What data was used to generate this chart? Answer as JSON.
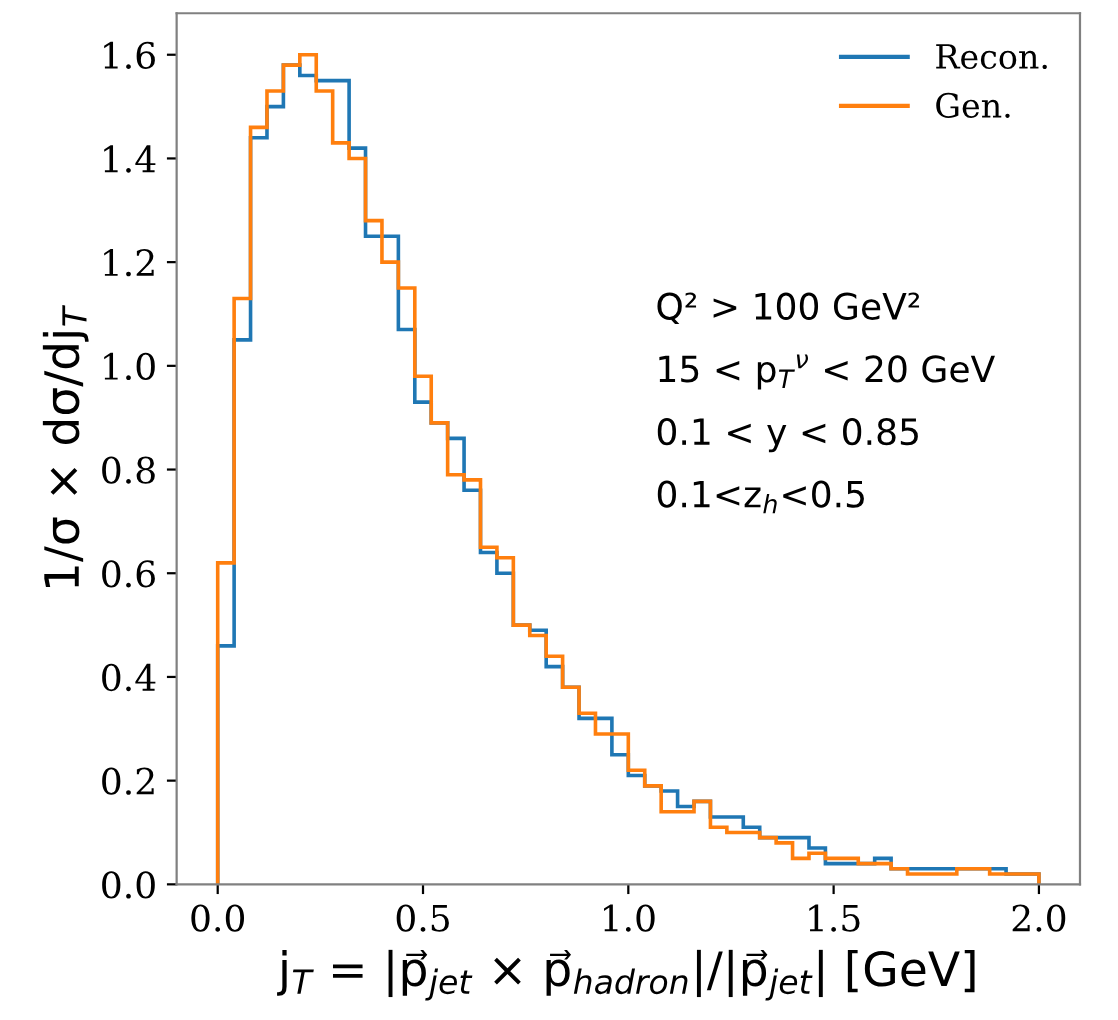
{
  "chart_data": {
    "type": "histogram",
    "xlabel": "j$_{T}$ = |p⃗$_{jet}$ × p⃗$_{hadron}$|/|p⃗$_{jet}$| [GeV]",
    "ylabel": "1/σ × dσ/dj$_{T}$",
    "bins": [
      0.0,
      0.04,
      0.08,
      0.12,
      0.16,
      0.2,
      0.24,
      0.28,
      0.32,
      0.36,
      0.4,
      0.44,
      0.48,
      0.52,
      0.56,
      0.6,
      0.64,
      0.68,
      0.72,
      0.76,
      0.8,
      0.84,
      0.88,
      0.92,
      0.96,
      1.0,
      1.04,
      1.08,
      1.12,
      1.16,
      1.2,
      1.24,
      1.28,
      1.32,
      1.36,
      1.4,
      1.44,
      1.48,
      1.52,
      1.56,
      1.6,
      1.64,
      1.68,
      1.72,
      1.76,
      1.8,
      1.84,
      1.88,
      1.92,
      1.96,
      2.0
    ],
    "series": [
      {
        "name": "Recon.",
        "color": "#1f77b4",
        "values": [
          0.46,
          1.05,
          1.44,
          1.5,
          1.58,
          1.56,
          1.55,
          1.55,
          1.42,
          1.25,
          1.25,
          1.07,
          0.93,
          0.89,
          0.86,
          0.76,
          0.64,
          0.6,
          0.5,
          0.49,
          0.42,
          0.38,
          0.32,
          0.32,
          0.25,
          0.21,
          0.19,
          0.18,
          0.15,
          0.16,
          0.13,
          0.13,
          0.11,
          0.09,
          0.09,
          0.09,
          0.07,
          0.04,
          0.04,
          0.04,
          0.05,
          0.03,
          0.03,
          0.03,
          0.03,
          0.03,
          0.03,
          0.03,
          0.02,
          0.02
        ]
      },
      {
        "name": "Gen.",
        "color": "#ff7f0e",
        "values": [
          0.62,
          1.13,
          1.46,
          1.53,
          1.58,
          1.6,
          1.53,
          1.43,
          1.4,
          1.28,
          1.2,
          1.15,
          0.98,
          0.89,
          0.79,
          0.78,
          0.65,
          0.63,
          0.5,
          0.48,
          0.44,
          0.38,
          0.33,
          0.29,
          0.29,
          0.22,
          0.19,
          0.14,
          0.14,
          0.16,
          0.11,
          0.1,
          0.1,
          0.09,
          0.08,
          0.05,
          0.06,
          0.05,
          0.05,
          0.04,
          0.04,
          0.03,
          0.02,
          0.02,
          0.02,
          0.03,
          0.03,
          0.02,
          0.02,
          0.02
        ]
      }
    ],
    "xlim": [
      -0.1,
      2.1
    ],
    "ylim": [
      0,
      1.68
    ],
    "xticks": [
      {
        "value": 0.0,
        "label": "0.0"
      },
      0.5,
      {
        "value": 1.0,
        "label": "1.0"
      },
      1.5,
      {
        "value": 2.0,
        "label": "2.0"
      }
    ],
    "yticks": [
      {
        "value": 0.0,
        "label": "0.0"
      },
      0.2,
      0.4,
      0.6,
      0.8,
      {
        "value": 1.0,
        "label": "1.0"
      },
      1.2,
      1.4,
      1.6
    ],
    "legend": "top right",
    "grid": false,
    "annotations": [
      "Q² > 100 GeV²",
      "15 < p$_{T}$$^{ν}$ < 20 GeV",
      "0.1 < y < 0.85",
      "0.1<z$_{h}$<0.5"
    ]
  }
}
